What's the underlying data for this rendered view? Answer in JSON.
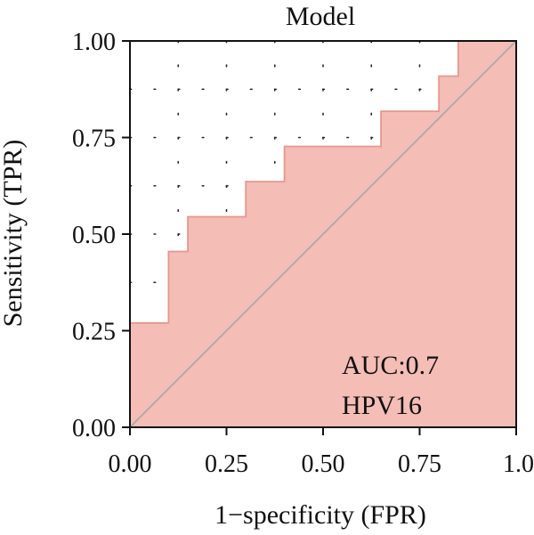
{
  "chart_data": {
    "type": "area",
    "title": "Model",
    "xlabel": "1−specificity (FPR)",
    "ylabel": "Sensitivity (TPR)",
    "xlim": [
      0,
      1
    ],
    "ylim": [
      0,
      1
    ],
    "x_ticks": [
      "0.00",
      "0.25",
      "0.50",
      "0.75",
      "1.0"
    ],
    "y_ticks": [
      "0.00",
      "0.25",
      "0.50",
      "0.75",
      "1.00"
    ],
    "grid": "dotted",
    "series": [
      {
        "values": [
          {
            "x": 0.0,
            "y": 0.0
          },
          {
            "x": 0.0,
            "y": 0.27
          },
          {
            "x": 0.1,
            "y": 0.27
          },
          {
            "x": 0.1,
            "y": 0.455
          },
          {
            "x": 0.15,
            "y": 0.455
          },
          {
            "x": 0.15,
            "y": 0.545
          },
          {
            "x": 0.3,
            "y": 0.545
          },
          {
            "x": 0.3,
            "y": 0.636
          },
          {
            "x": 0.4,
            "y": 0.636
          },
          {
            "x": 0.4,
            "y": 0.727
          },
          {
            "x": 0.65,
            "y": 0.727
          },
          {
            "x": 0.65,
            "y": 0.818
          },
          {
            "x": 0.8,
            "y": 0.818
          },
          {
            "x": 0.8,
            "y": 0.909
          },
          {
            "x": 0.85,
            "y": 0.909
          },
          {
            "x": 0.85,
            "y": 1.0
          },
          {
            "x": 1.0,
            "y": 1.0
          }
        ]
      }
    ],
    "reference_line": {
      "from": [
        0,
        0
      ],
      "to": [
        1,
        1
      ]
    },
    "annotations": [
      "AUC:0.7",
      "HPV16"
    ],
    "colors": {
      "fill": "#f4bdb6",
      "edge": "#e8968c",
      "diagonal": "#aaaaaa",
      "frame": "#111111",
      "grid": "#222222"
    }
  }
}
